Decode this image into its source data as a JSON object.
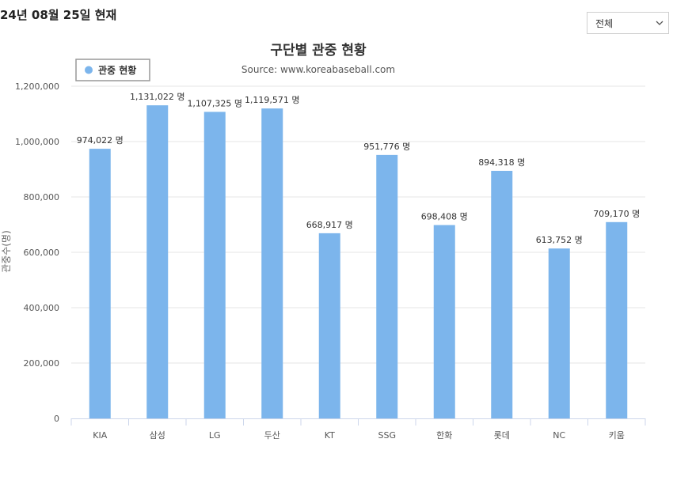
{
  "header": {
    "date_title": "24년 08월 25일 현재"
  },
  "filter": {
    "selected": "전체",
    "icon": "chevron-down-icon"
  },
  "chart_data": {
    "type": "bar",
    "title": "구단별 관중 현황",
    "subtitle": "Source: www.koreabaseball.com",
    "legend": [
      "관중 현황"
    ],
    "legend_position": "top-left",
    "ylabel": "관중수(명)",
    "xlabel": "",
    "ylim": [
      0,
      1200000
    ],
    "yticks": [
      0,
      200000,
      400000,
      600000,
      800000,
      1000000,
      1200000
    ],
    "ytick_labels": [
      "0",
      "200,000",
      "400,000",
      "600,000",
      "800,000",
      "1,000,000",
      "1,200,000"
    ],
    "categories": [
      "KIA",
      "삼성",
      "LG",
      "두산",
      "KT",
      "SSG",
      "한화",
      "롯데",
      "NC",
      "키움"
    ],
    "values": [
      974022,
      1131022,
      1107325,
      1119571,
      668917,
      951776,
      698408,
      894318,
      613752,
      709170
    ],
    "data_labels": [
      "974,022 명",
      "1,131,022 명",
      "1,107,325 명",
      "1,119,571 명",
      "668,917 명",
      "951,776 명",
      "698,408 명",
      "894,318 명",
      "613,752 명",
      "709,170 명"
    ],
    "bar_color": "#7cb5ec",
    "grid": true
  }
}
